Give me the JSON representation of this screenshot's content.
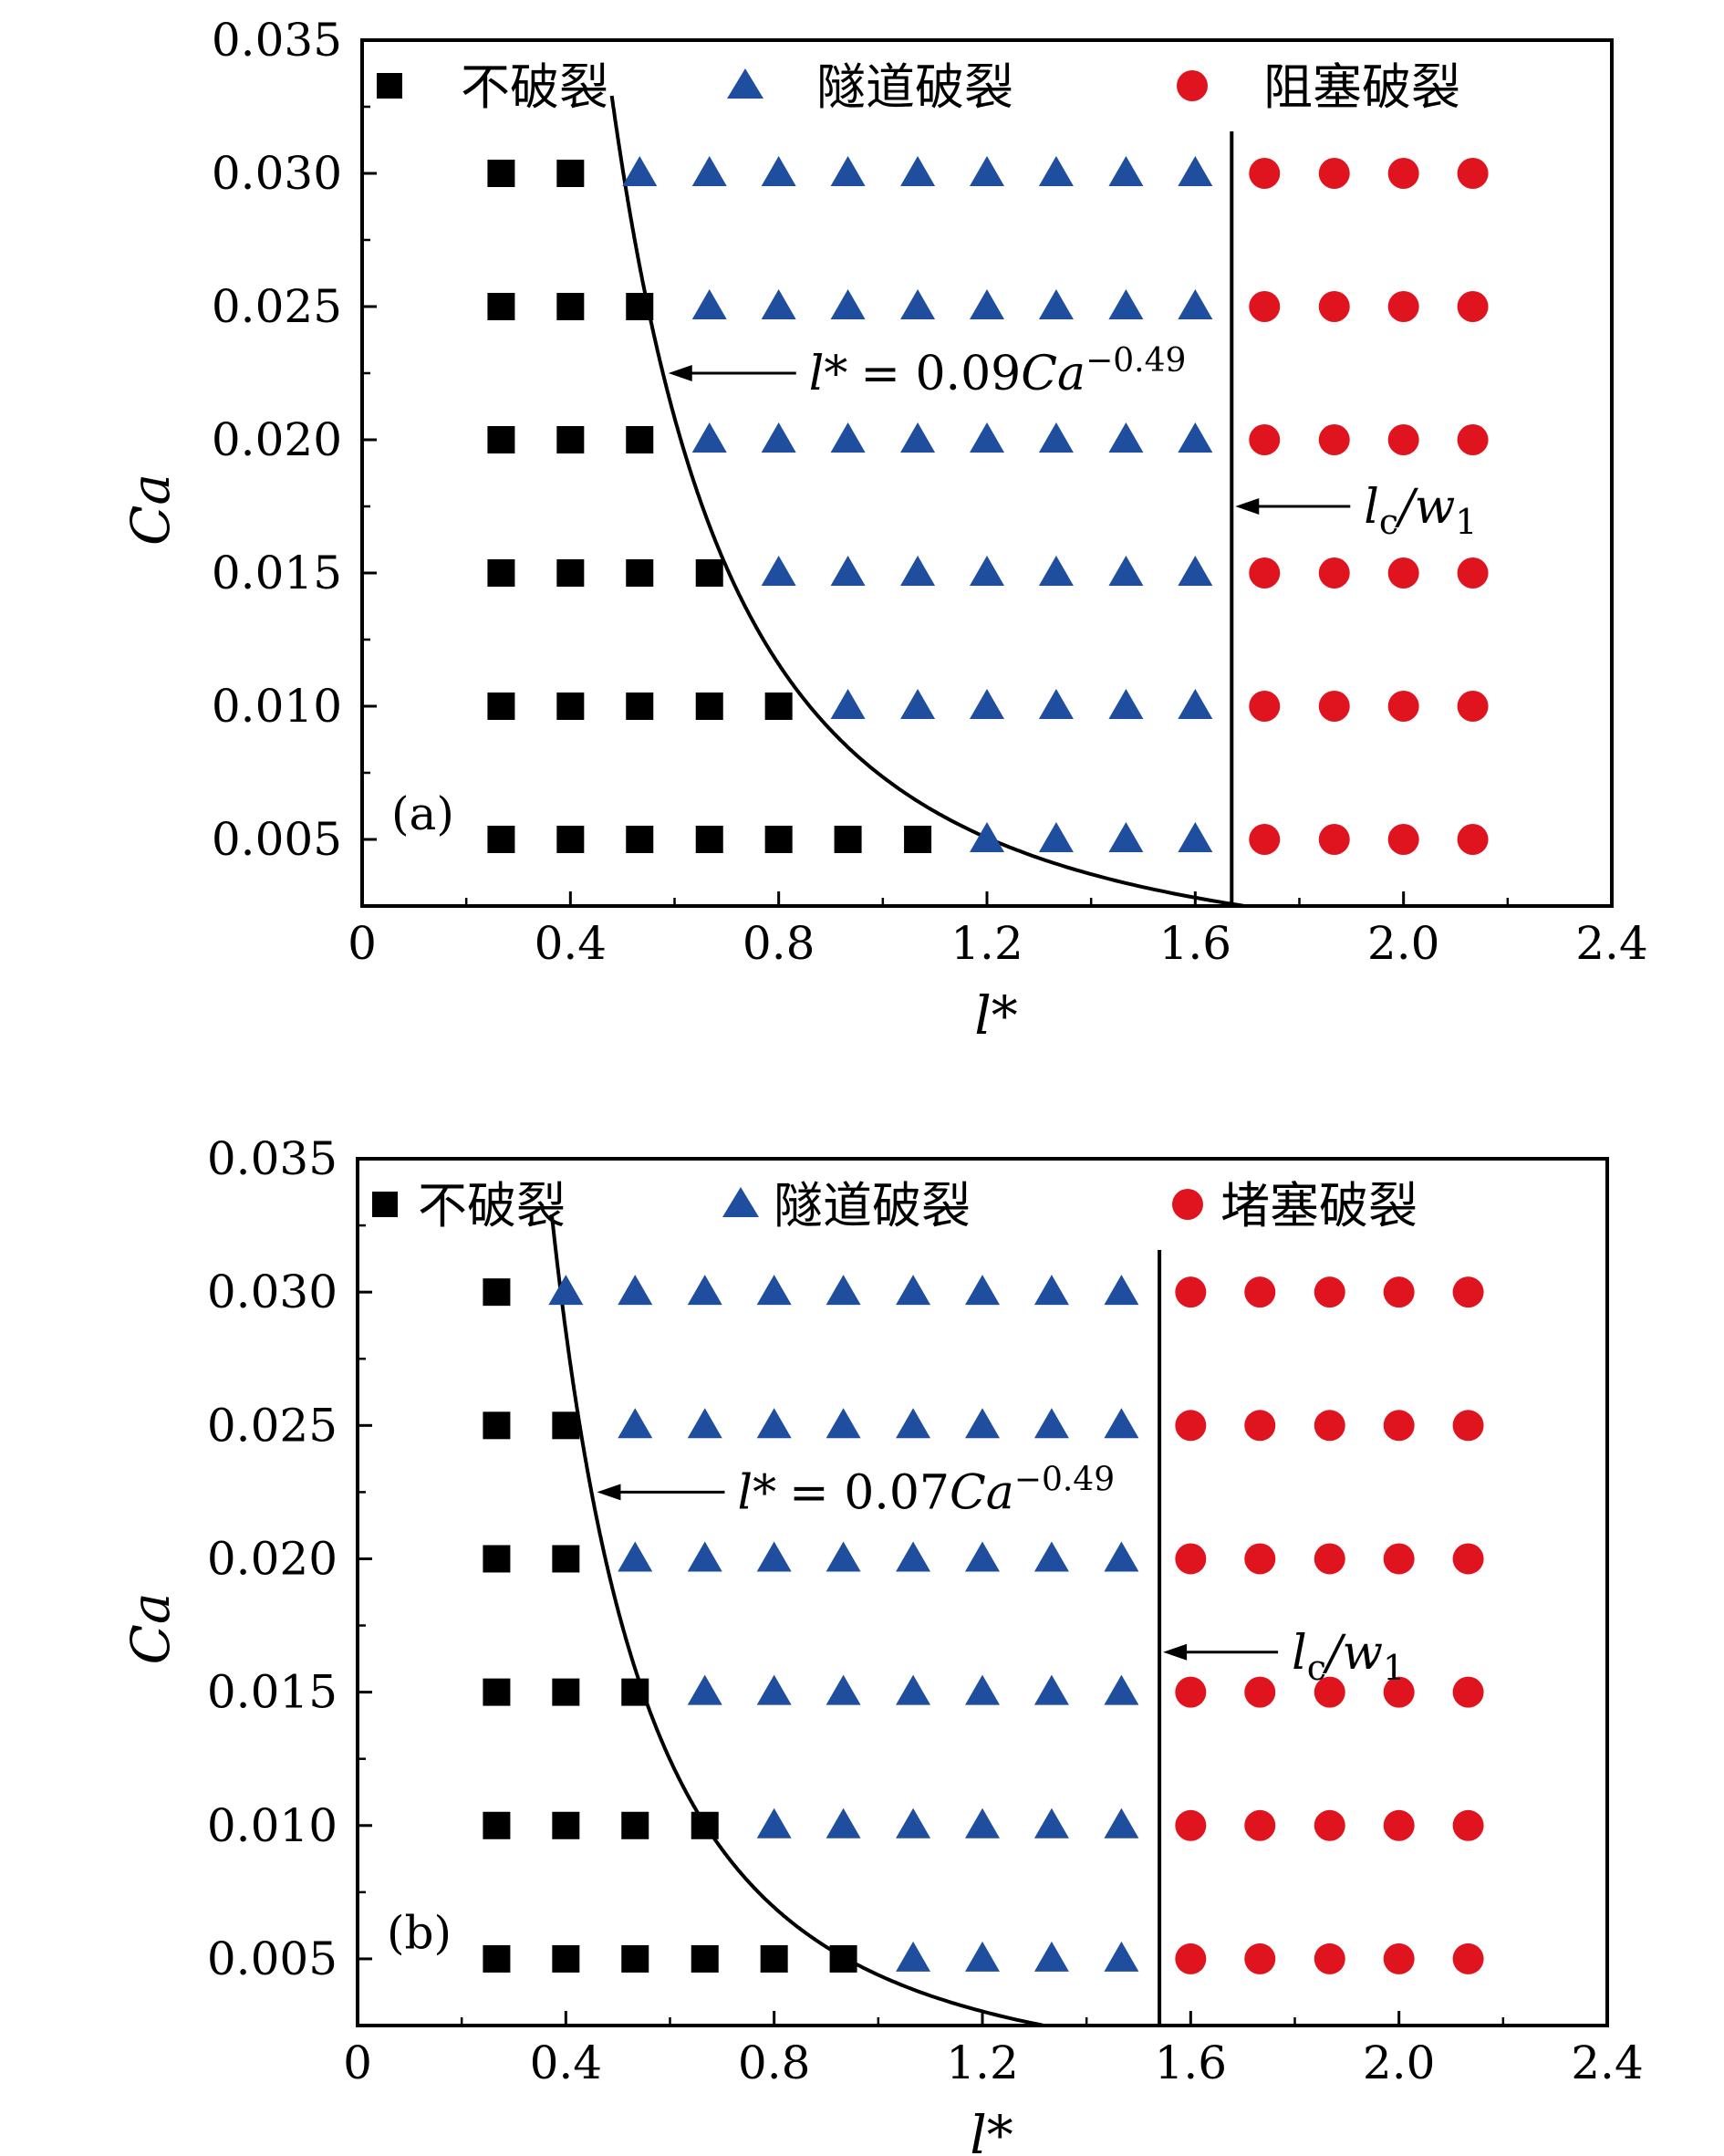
{
  "colors": {
    "no_breakup": "#000000",
    "tunnel_breakup": "#1f4e9e",
    "obstruct_breakup": "#e0141e",
    "axis": "#000000"
  },
  "chart_data": [
    {
      "type": "scatter",
      "panel_label": "(a)",
      "xlabel": "l*",
      "ylabel": "Ca",
      "xlim": [
        0,
        2.4
      ],
      "ylim": [
        0.0025,
        0.035
      ],
      "xticks": [
        "0",
        "0.4",
        "0.8",
        "1.2",
        "1.6",
        "2.0",
        "2.4"
      ],
      "yticks": [
        "0.005",
        "0.010",
        "0.015",
        "0.020",
        "0.025",
        "0.030",
        "0.035"
      ],
      "legend": [
        "不破裂",
        "隧道破裂",
        "阻塞破裂"
      ],
      "series": [
        {
          "name": "不破裂",
          "marker": "square",
          "points": [
            [
              0.267,
              0.03
            ],
            [
              0.4,
              0.03
            ],
            [
              0.267,
              0.025
            ],
            [
              0.4,
              0.025
            ],
            [
              0.533,
              0.025
            ],
            [
              0.267,
              0.02
            ],
            [
              0.4,
              0.02
            ],
            [
              0.533,
              0.02
            ],
            [
              0.267,
              0.015
            ],
            [
              0.4,
              0.015
            ],
            [
              0.533,
              0.015
            ],
            [
              0.667,
              0.015
            ],
            [
              0.267,
              0.01
            ],
            [
              0.4,
              0.01
            ],
            [
              0.533,
              0.01
            ],
            [
              0.667,
              0.01
            ],
            [
              0.8,
              0.01
            ],
            [
              0.267,
              0.005
            ],
            [
              0.4,
              0.005
            ],
            [
              0.533,
              0.005
            ],
            [
              0.667,
              0.005
            ],
            [
              0.8,
              0.005
            ],
            [
              0.933,
              0.005
            ],
            [
              1.067,
              0.005
            ]
          ]
        },
        {
          "name": "隧道破裂",
          "marker": "triangle",
          "points": [
            [
              0.533,
              0.03
            ],
            [
              0.667,
              0.03
            ],
            [
              0.8,
              0.03
            ],
            [
              0.933,
              0.03
            ],
            [
              1.067,
              0.03
            ],
            [
              1.2,
              0.03
            ],
            [
              1.333,
              0.03
            ],
            [
              1.467,
              0.03
            ],
            [
              1.6,
              0.03
            ],
            [
              0.667,
              0.025
            ],
            [
              0.8,
              0.025
            ],
            [
              0.933,
              0.025
            ],
            [
              1.067,
              0.025
            ],
            [
              1.2,
              0.025
            ],
            [
              1.333,
              0.025
            ],
            [
              1.467,
              0.025
            ],
            [
              1.6,
              0.025
            ],
            [
              0.667,
              0.02
            ],
            [
              0.8,
              0.02
            ],
            [
              0.933,
              0.02
            ],
            [
              1.067,
              0.02
            ],
            [
              1.2,
              0.02
            ],
            [
              1.333,
              0.02
            ],
            [
              1.467,
              0.02
            ],
            [
              1.6,
              0.02
            ],
            [
              0.8,
              0.015
            ],
            [
              0.933,
              0.015
            ],
            [
              1.067,
              0.015
            ],
            [
              1.2,
              0.015
            ],
            [
              1.333,
              0.015
            ],
            [
              1.467,
              0.015
            ],
            [
              1.6,
              0.015
            ],
            [
              0.933,
              0.01
            ],
            [
              1.067,
              0.01
            ],
            [
              1.2,
              0.01
            ],
            [
              1.333,
              0.01
            ],
            [
              1.467,
              0.01
            ],
            [
              1.6,
              0.01
            ],
            [
              1.2,
              0.005
            ],
            [
              1.333,
              0.005
            ],
            [
              1.467,
              0.005
            ],
            [
              1.6,
              0.005
            ]
          ]
        },
        {
          "name": "阻塞破裂",
          "marker": "circle",
          "points": [
            [
              1.733,
              0.03
            ],
            [
              1.867,
              0.03
            ],
            [
              2.0,
              0.03
            ],
            [
              2.133,
              0.03
            ],
            [
              1.733,
              0.025
            ],
            [
              1.867,
              0.025
            ],
            [
              2.0,
              0.025
            ],
            [
              2.133,
              0.025
            ],
            [
              1.733,
              0.02
            ],
            [
              1.867,
              0.02
            ],
            [
              2.0,
              0.02
            ],
            [
              2.133,
              0.02
            ],
            [
              1.733,
              0.015
            ],
            [
              1.867,
              0.015
            ],
            [
              2.0,
              0.015
            ],
            [
              2.133,
              0.015
            ],
            [
              1.733,
              0.01
            ],
            [
              1.867,
              0.01
            ],
            [
              2.0,
              0.01
            ],
            [
              2.133,
              0.01
            ],
            [
              1.733,
              0.005
            ],
            [
              1.867,
              0.005
            ],
            [
              2.0,
              0.005
            ],
            [
              2.133,
              0.005
            ]
          ]
        }
      ],
      "curve": {
        "coef": 0.09,
        "exponent": -0.49,
        "label_lhs": "l*",
        "label_eq": "= 0.09",
        "label_var": "Ca",
        "label_exp": "−0.49",
        "arrow_target_ca": 0.0225
      },
      "vline": {
        "x": 1.67,
        "label_main": "l",
        "label_sub": "c",
        "label_rest": "/w",
        "label_sub2": "1",
        "arrow_ca": 0.0175
      }
    },
    {
      "type": "scatter",
      "panel_label": "(b)",
      "xlabel": "l*",
      "ylabel": "Ca",
      "xlim": [
        0,
        2.4
      ],
      "ylim": [
        0.0025,
        0.035
      ],
      "xticks": [
        "0",
        "0.4",
        "0.8",
        "1.2",
        "1.6",
        "2.0",
        "2.4"
      ],
      "yticks": [
        "0.005",
        "0.010",
        "0.015",
        "0.020",
        "0.025",
        "0.030",
        "0.035"
      ],
      "legend": [
        "不破裂",
        "隧道破裂",
        "堵塞破裂"
      ],
      "series": [
        {
          "name": "不破裂",
          "marker": "square",
          "points": [
            [
              0.267,
              0.03
            ],
            [
              0.267,
              0.025
            ],
            [
              0.4,
              0.025
            ],
            [
              0.267,
              0.02
            ],
            [
              0.4,
              0.02
            ],
            [
              0.267,
              0.015
            ],
            [
              0.4,
              0.015
            ],
            [
              0.533,
              0.015
            ],
            [
              0.267,
              0.01
            ],
            [
              0.4,
              0.01
            ],
            [
              0.533,
              0.01
            ],
            [
              0.667,
              0.01
            ],
            [
              0.267,
              0.005
            ],
            [
              0.4,
              0.005
            ],
            [
              0.533,
              0.005
            ],
            [
              0.667,
              0.005
            ],
            [
              0.8,
              0.005
            ],
            [
              0.933,
              0.005
            ]
          ]
        },
        {
          "name": "隧道破裂",
          "marker": "triangle",
          "points": [
            [
              0.4,
              0.03
            ],
            [
              0.533,
              0.03
            ],
            [
              0.667,
              0.03
            ],
            [
              0.8,
              0.03
            ],
            [
              0.933,
              0.03
            ],
            [
              1.067,
              0.03
            ],
            [
              1.2,
              0.03
            ],
            [
              1.333,
              0.03
            ],
            [
              1.467,
              0.03
            ],
            [
              0.533,
              0.025
            ],
            [
              0.667,
              0.025
            ],
            [
              0.8,
              0.025
            ],
            [
              0.933,
              0.025
            ],
            [
              1.067,
              0.025
            ],
            [
              1.2,
              0.025
            ],
            [
              1.333,
              0.025
            ],
            [
              1.467,
              0.025
            ],
            [
              0.533,
              0.02
            ],
            [
              0.667,
              0.02
            ],
            [
              0.8,
              0.02
            ],
            [
              0.933,
              0.02
            ],
            [
              1.067,
              0.02
            ],
            [
              1.2,
              0.02
            ],
            [
              1.333,
              0.02
            ],
            [
              1.467,
              0.02
            ],
            [
              0.667,
              0.015
            ],
            [
              0.8,
              0.015
            ],
            [
              0.933,
              0.015
            ],
            [
              1.067,
              0.015
            ],
            [
              1.2,
              0.015
            ],
            [
              1.333,
              0.015
            ],
            [
              1.467,
              0.015
            ],
            [
              0.8,
              0.01
            ],
            [
              0.933,
              0.01
            ],
            [
              1.067,
              0.01
            ],
            [
              1.2,
              0.01
            ],
            [
              1.333,
              0.01
            ],
            [
              1.467,
              0.01
            ],
            [
              1.067,
              0.005
            ],
            [
              1.2,
              0.005
            ],
            [
              1.333,
              0.005
            ],
            [
              1.467,
              0.005
            ]
          ]
        },
        {
          "name": "堵塞破裂",
          "marker": "circle",
          "points": [
            [
              1.6,
              0.03
            ],
            [
              1.733,
              0.03
            ],
            [
              1.867,
              0.03
            ],
            [
              2.0,
              0.03
            ],
            [
              2.133,
              0.03
            ],
            [
              1.6,
              0.025
            ],
            [
              1.733,
              0.025
            ],
            [
              1.867,
              0.025
            ],
            [
              2.0,
              0.025
            ],
            [
              2.133,
              0.025
            ],
            [
              1.6,
              0.02
            ],
            [
              1.733,
              0.02
            ],
            [
              1.867,
              0.02
            ],
            [
              2.0,
              0.02
            ],
            [
              2.133,
              0.02
            ],
            [
              1.6,
              0.015
            ],
            [
              1.733,
              0.015
            ],
            [
              1.867,
              0.015
            ],
            [
              2.0,
              0.015
            ],
            [
              2.133,
              0.015
            ],
            [
              1.6,
              0.01
            ],
            [
              1.733,
              0.01
            ],
            [
              1.867,
              0.01
            ],
            [
              2.0,
              0.01
            ],
            [
              2.133,
              0.01
            ],
            [
              1.6,
              0.005
            ],
            [
              1.733,
              0.005
            ],
            [
              1.867,
              0.005
            ],
            [
              2.0,
              0.005
            ],
            [
              2.133,
              0.005
            ]
          ]
        }
      ],
      "curve": {
        "coef": 0.07,
        "exponent": -0.49,
        "label_lhs": "l*",
        "label_eq": "= 0.07",
        "label_var": "Ca",
        "label_exp": "−0.49",
        "arrow_target_ca": 0.0225
      },
      "vline": {
        "x": 1.54,
        "label_main": "l",
        "label_sub": "c",
        "label_rest": "/w",
        "label_sub2": "1",
        "arrow_ca": 0.0165
      }
    }
  ]
}
